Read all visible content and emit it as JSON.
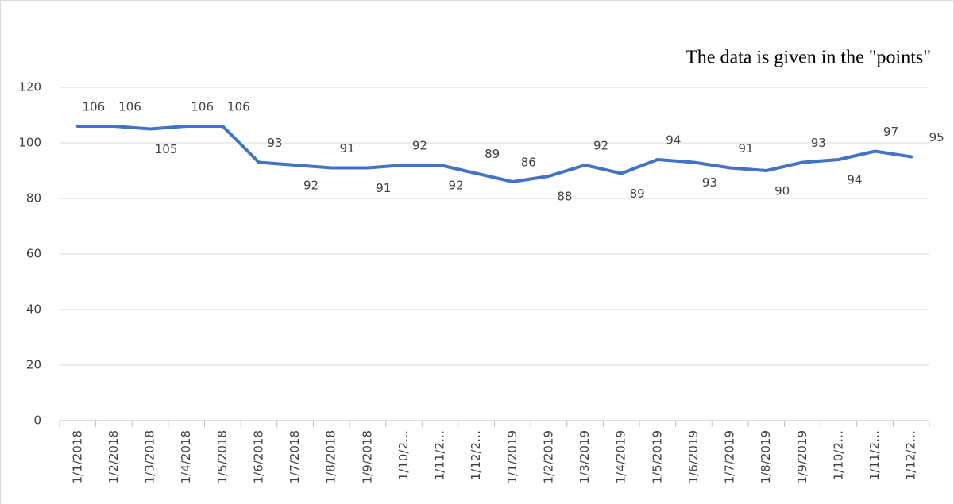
{
  "chart_data": {
    "type": "line",
    "annotation": "The data is given in the \"points\"",
    "categories": [
      "1/1/2018",
      "1/2/2018",
      "1/3/2018",
      "1/4/2018",
      "1/5/2018",
      "1/6/2018",
      "1/7/2018",
      "1/8/2018",
      "1/9/2018",
      "1/10/2…",
      "1/11/2…",
      "1/12/2…",
      "1/1/2019",
      "1/2/2019",
      "1/3/2019",
      "1/4/2019",
      "1/5/2019",
      "1/6/2019",
      "1/7/2019",
      "1/8/2019",
      "1/9/2019",
      "1/10/2…",
      "1/11/2…",
      "1/12/2…"
    ],
    "values": [
      106,
      106,
      105,
      106,
      106,
      93,
      92,
      91,
      91,
      92,
      92,
      89,
      86,
      88,
      92,
      89,
      94,
      93,
      91,
      90,
      93,
      94,
      97,
      95
    ],
    "color": "#4472c4",
    "ylim": [
      0,
      120
    ],
    "yticks": [
      0,
      20,
      40,
      60,
      80,
      100,
      120
    ],
    "grid": true
  }
}
